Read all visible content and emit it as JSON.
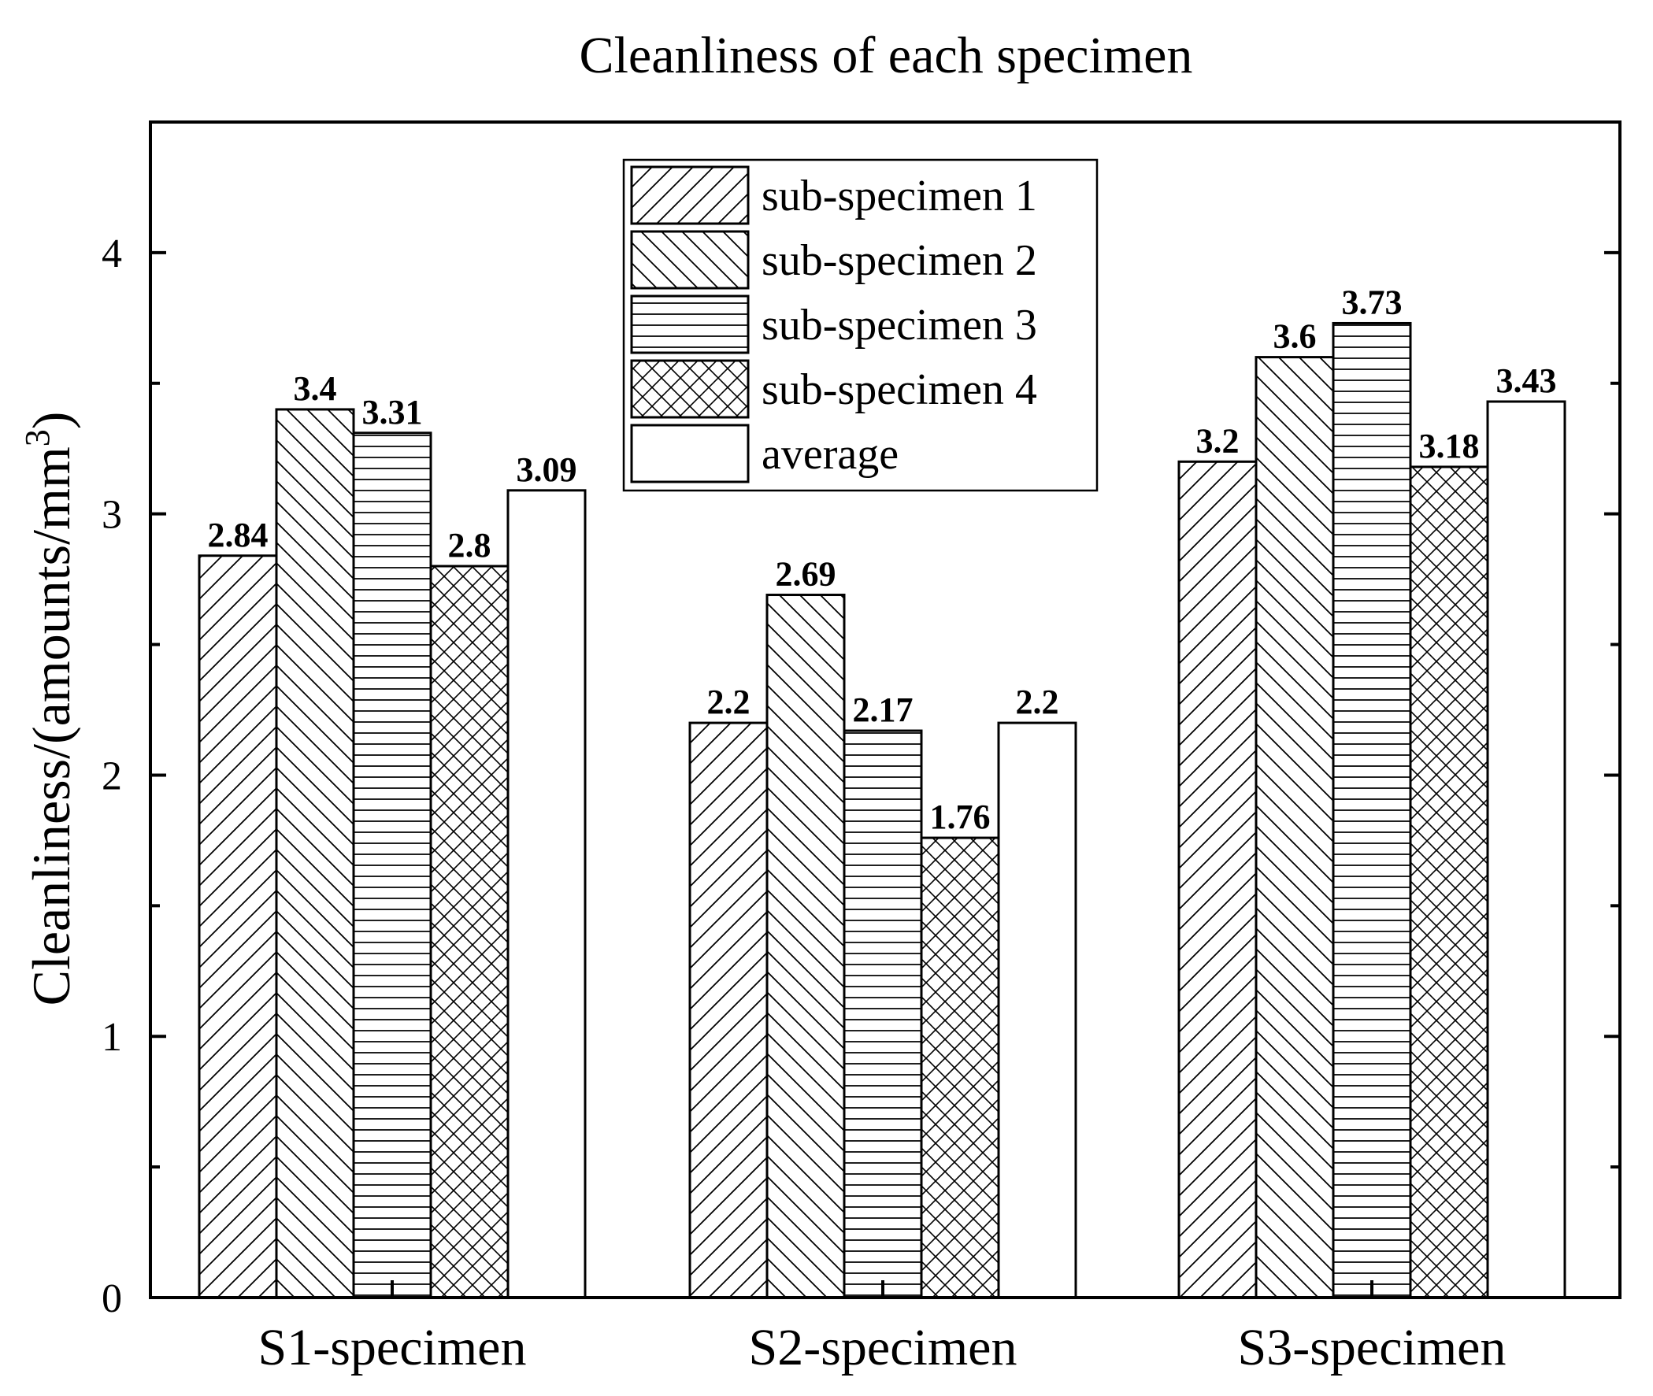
{
  "chart_data": {
    "type": "bar",
    "title": "Cleanliness of each specimen",
    "ylabel_main": "Cleanliness/(amounts/mm",
    "ylabel_sup": "3",
    "ylabel_close": ")",
    "xlabel": "",
    "ylim": [
      0,
      4.5
    ],
    "yticks": [
      0,
      1,
      2,
      3,
      4
    ],
    "ytick_labels": [
      "0",
      "1",
      "2",
      "3",
      "4"
    ],
    "categories": [
      "S1-specimen",
      "S2-specimen",
      "S3-specimen"
    ],
    "series": [
      {
        "name": "sub-specimen 1",
        "pattern": "diag-up",
        "values": [
          2.84,
          2.2,
          3.2
        ],
        "labels": [
          "2.84",
          "2.2",
          "3.2"
        ]
      },
      {
        "name": "sub-specimen 2",
        "pattern": "diag-down",
        "values": [
          3.4,
          2.69,
          3.6
        ],
        "labels": [
          "3.4",
          "2.69",
          "3.6"
        ]
      },
      {
        "name": "sub-specimen 3",
        "pattern": "horizontal",
        "values": [
          3.31,
          2.17,
          3.73
        ],
        "labels": [
          "3.31",
          "2.17",
          "3.73"
        ]
      },
      {
        "name": "sub-specimen 4",
        "pattern": "crosshatch",
        "values": [
          2.8,
          1.76,
          3.18
        ],
        "labels": [
          "2.8",
          "1.76",
          "3.18"
        ]
      },
      {
        "name": "average",
        "pattern": "none",
        "values": [
          3.09,
          2.2,
          3.43
        ],
        "labels": [
          "3.09",
          "2.2",
          "3.43"
        ]
      }
    ],
    "legend_position": "top-center",
    "grid": false,
    "colors": {
      "ink": "#000000",
      "background": "#ffffff"
    }
  }
}
